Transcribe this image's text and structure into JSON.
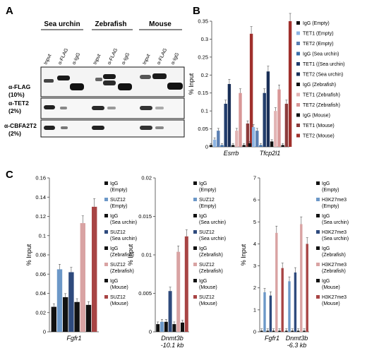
{
  "panels": {
    "A": {
      "letter": "A",
      "group_headers": [
        "Sea urchin",
        "Zebrafish",
        "Mouse"
      ],
      "lane_labels": [
        "Input",
        "α-FLAG",
        "α-IgG",
        "Input",
        "α-FLAG",
        "α-IgG",
        "Input",
        "α-FLAG",
        "α-IgG"
      ],
      "row_labels": [
        {
          "name": "α-FLAG",
          "sub": "(10%)"
        },
        {
          "name": "α-TET2",
          "sub": "(2%)"
        },
        {
          "name": "α-CBFA2T2",
          "sub": "(2%)"
        }
      ]
    },
    "B": {
      "letter": "B"
    },
    "C": {
      "letter": "C"
    }
  },
  "colors": {
    "IgG": "#111111",
    "TET1_empty": "#8db4e2",
    "TET2_empty": "#5b7fb2",
    "IgG_sea": "#3a6ea8",
    "TET1_sea": "#213c6b",
    "TET2_sea": "#1a2f57",
    "TET1_zeb": "#e2b4b4",
    "TET2_zeb": "#d89797",
    "TET1_mouse": "#8c3b3b",
    "TET2_mouse": "#a0302c",
    "SUZ12_empty": "#6c98c8",
    "SUZ12_sea": "#2e4a7d",
    "SUZ12_zeb": "#d9a3a3",
    "SUZ12_mouse": "#a84444"
  },
  "chart_data": [
    {
      "type": "bar",
      "panel": "B",
      "ylabel": "% Input",
      "ylim": [
        0,
        0.35
      ],
      "yticks": [
        "0",
        "0.05",
        "0.1",
        "0.15",
        "0.2",
        "0.25",
        "0.3",
        "0.35"
      ],
      "categories": [
        "Esrrb",
        "Tfcp2l1"
      ],
      "legend_position": "right",
      "series": [
        {
          "name": "IgG (Empty)",
          "color": "#111111",
          "values": [
            0.005,
            0.01
          ]
        },
        {
          "name": "TET1 (Empty)",
          "color": "#8db4e2",
          "values": [
            0.02,
            0.055
          ]
        },
        {
          "name": "TET2 (Empty)",
          "color": "#5b7fb2",
          "values": [
            0.045,
            0.045
          ]
        },
        {
          "name": "IgG (Sea urchin)",
          "color": "#3a6ea8",
          "values": [
            0.005,
            0.005
          ]
        },
        {
          "name": "TET1 ((Sea urchin)",
          "color": "#213c6b",
          "values": [
            0.12,
            0.15
          ]
        },
        {
          "name": "TET2 (Sea urchin)",
          "color": "#1a2f57",
          "values": [
            0.175,
            0.21
          ]
        },
        {
          "name": "IgG (Zebrafish)",
          "color": "#111111",
          "values": [
            0.005,
            0.015
          ]
        },
        {
          "name": "TET1 (Zebrafish)",
          "color": "#e2b4b4",
          "values": [
            0.045,
            0.1
          ]
        },
        {
          "name": "TET2 (Zebrafish)",
          "color": "#d89797",
          "values": [
            0.15,
            0.16
          ]
        },
        {
          "name": "IgG (Mouse)",
          "color": "#111111",
          "values": [
            0.005,
            0.005
          ]
        },
        {
          "name": "TET1 (Mouse)",
          "color": "#8c3b3b",
          "values": [
            0.065,
            0.12
          ]
        },
        {
          "name": "TET2 (Mouse)",
          "color": "#a0302c",
          "values": [
            0.315,
            0.35
          ]
        }
      ]
    },
    {
      "type": "bar",
      "panel": "C1",
      "ylabel": "% Input",
      "ylim": [
        0,
        0.16
      ],
      "yticks": [
        "0",
        "0.02",
        "0.04",
        "0.06",
        "0.08",
        "0.1",
        "0.12",
        "0.14",
        "0.16"
      ],
      "categories": [
        "Fgfr1"
      ],
      "legend_position": "right",
      "series": [
        {
          "name": "IgG (Empty)",
          "color": "#111111",
          "values": [
            0.026
          ]
        },
        {
          "name": "SUZ12 (Empty)",
          "color": "#6c98c8",
          "values": [
            0.065
          ]
        },
        {
          "name": "IgG (Sea urchin)",
          "color": "#111111",
          "values": [
            0.036
          ]
        },
        {
          "name": "SUZ12 (Sea urchin)",
          "color": "#2e4a7d",
          "values": [
            0.062
          ]
        },
        {
          "name": "IgG (Zebrafish)",
          "color": "#111111",
          "values": [
            0.031
          ]
        },
        {
          "name": "SUZ12 (Zebrafish)",
          "color": "#d9a3a3",
          "values": [
            0.113
          ]
        },
        {
          "name": "IgG (Mouse)",
          "color": "#111111",
          "values": [
            0.028
          ]
        },
        {
          "name": "SUZ12 (Mouse)",
          "color": "#a84444",
          "values": [
            0.13
          ]
        }
      ]
    },
    {
      "type": "bar",
      "panel": "C2",
      "ylabel": "% Input",
      "ylim": [
        0,
        0.02
      ],
      "yticks": [
        "0",
        "0.005",
        "0.01",
        "0.015",
        "0.02"
      ],
      "categories": [
        "Dnmt3b -10.1 kb"
      ],
      "category_lines": [
        [
          "Dnmt3b",
          "-10.1 kb"
        ]
      ],
      "legend_position": "right",
      "series": [
        {
          "name": "IgG (Empty)",
          "color": "#111111",
          "values": [
            0.001
          ]
        },
        {
          "name": "SUZ12 (Empty)",
          "color": "#6c98c8",
          "values": [
            0.0013
          ]
        },
        {
          "name": "IgG (Sea urchin)",
          "color": "#111111",
          "values": [
            0.0013
          ]
        },
        {
          "name": "SUZ12 (Sea urchin)",
          "color": "#2e4a7d",
          "values": [
            0.0053
          ]
        },
        {
          "name": "IgG (Zebrafish)",
          "color": "#111111",
          "values": [
            0.001
          ]
        },
        {
          "name": "SUZ12 (Zebrafish)",
          "color": "#d9a3a3",
          "values": [
            0.0104
          ]
        },
        {
          "name": "IgG (Mouse)",
          "color": "#111111",
          "values": [
            0.0012
          ]
        },
        {
          "name": "SUZ12 (Mouse)",
          "color": "#a84444",
          "values": [
            0.0124
          ]
        }
      ]
    },
    {
      "type": "bar",
      "panel": "C3",
      "ylabel": "% Input",
      "ylim": [
        0,
        7
      ],
      "yticks": [
        "0",
        "1",
        "2",
        "3",
        "4",
        "5",
        "6",
        "7"
      ],
      "categories": [
        "Fgfr1",
        "Dnmt3b -6.3 kb"
      ],
      "category_lines": [
        [
          "Fgfr1"
        ],
        [
          "Dnmt3b",
          "-6.3 kb"
        ]
      ],
      "legend_position": "right",
      "series": [
        {
          "name": "IgG (Empty)",
          "color": "#111111",
          "values": [
            0.05,
            0.05
          ]
        },
        {
          "name": "H3K27me3 (Empty)",
          "color": "#6c98c8",
          "values": [
            1.8,
            2.3
          ]
        },
        {
          "name": "IgG (Sea urchin)",
          "color": "#111111",
          "values": [
            0.05,
            0.05
          ]
        },
        {
          "name": "H3K27me3 (Sea urchin)",
          "color": "#2e4a7d",
          "values": [
            1.65,
            2.7
          ]
        },
        {
          "name": "IgG (Zebrafish)",
          "color": "#111111",
          "values": [
            0.05,
            0.05
          ]
        },
        {
          "name": "H3K27me3 (Zebrafish)",
          "color": "#d9a3a3",
          "values": [
            4.5,
            4.9
          ]
        },
        {
          "name": "IgG (Mouse)",
          "color": "#111111",
          "values": [
            0.05,
            0.05
          ]
        },
        {
          "name": "H3K27me3 (Mouse)",
          "color": "#a84444",
          "values": [
            2.9,
            4.0
          ]
        }
      ]
    }
  ],
  "legendC1": [
    [
      "IgG",
      "(Empty)"
    ],
    [
      "SUZ12",
      "(Empty)"
    ],
    [
      "IgG",
      "(Sea urchin)"
    ],
    [
      "SUZ12",
      "(Sea urchin)"
    ],
    [
      "IgG",
      "(Zebrafish)"
    ],
    [
      "SUZ12",
      "(Zebrafish)"
    ],
    [
      "IgG",
      "(Mouse)"
    ],
    [
      "SUZ12",
      "(Mouse)"
    ]
  ],
  "legendC3": [
    [
      "IgG",
      "(Empty)"
    ],
    [
      "H3K27me3",
      "(Empty)"
    ],
    [
      "IgG",
      "(Sea urchin)"
    ],
    [
      "H3K27me3",
      "(Sea urchin)"
    ],
    [
      "IgG",
      "(Zebrafish)"
    ],
    [
      "H3K27me3",
      "(Zebrafish)"
    ],
    [
      "IgG",
      "(Mouse)"
    ],
    [
      "H3K27me3",
      "(Mouse)"
    ]
  ]
}
